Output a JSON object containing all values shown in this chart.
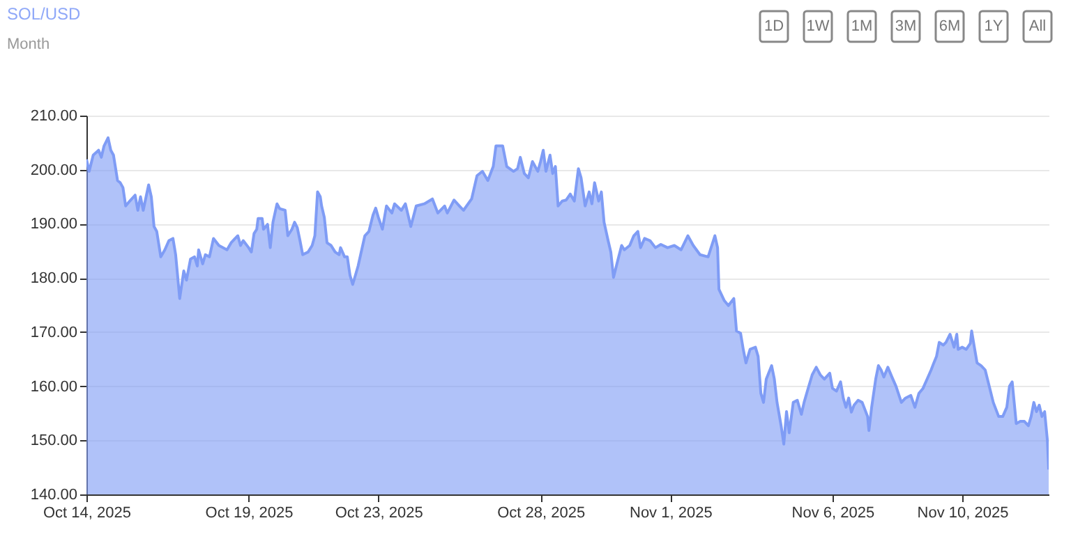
{
  "chart_data": {
    "type": "area",
    "title": "SOL/USD",
    "subtitle": "Month",
    "annotations": [
      "1D",
      "1W",
      "1M",
      "3M",
      "6M",
      "1Y",
      "All"
    ],
    "xlim": [
      "2025-10-14T00:00",
      "2025-11-12T16:00"
    ],
    "xticks": [
      {
        "value": "2025-10-14",
        "label": "Oct 14, 2025"
      },
      {
        "value": "2025-10-19",
        "label": "Oct 19, 2025"
      },
      {
        "value": "2025-10-23",
        "label": "Oct 23, 2025"
      },
      {
        "value": "2025-10-28",
        "label": "Oct 28, 2025"
      },
      {
        "value": "2025-11-01",
        "label": "Nov 1, 2025"
      },
      {
        "value": "2025-11-06",
        "label": "Nov 6, 2025"
      },
      {
        "value": "2025-11-10",
        "label": "Nov 10, 2025"
      }
    ],
    "ylim": [
      140,
      210
    ],
    "yticks": [
      {
        "value": 140,
        "label": "140.00"
      },
      {
        "value": 150,
        "label": "150.00"
      },
      {
        "value": 160,
        "label": "160.00"
      },
      {
        "value": 170,
        "label": "170.00"
      },
      {
        "value": 180,
        "label": "180.00"
      },
      {
        "value": 190,
        "label": "190.00"
      },
      {
        "value": 200,
        "label": "200.00"
      },
      {
        "value": 210,
        "label": "210.00"
      }
    ],
    "grid": "y",
    "series": [
      {
        "color": "#7f9cf5",
        "x": [
          "2025-10-14T00:00",
          "2025-10-14T02:00",
          "2025-10-14T05:00",
          "2025-10-14T09:00",
          "2025-10-14T11:00",
          "2025-10-14T13:00",
          "2025-10-14T16:00",
          "2025-10-14T18:00",
          "2025-10-14T20:00",
          "2025-10-14T23:00",
          "2025-10-15T01:00",
          "2025-10-15T03:00",
          "2025-10-15T05:00",
          "2025-10-15T08:00",
          "2025-10-15T12:00",
          "2025-10-15T14:00",
          "2025-10-15T16:00",
          "2025-10-15T18:00",
          "2025-10-15T22:00",
          "2025-10-16T00:00",
          "2025-10-16T02:00",
          "2025-10-16T04:00",
          "2025-10-16T07:00",
          "2025-10-16T10:00",
          "2025-10-16T13:00",
          "2025-10-16T16:00",
          "2025-10-16T18:00",
          "2025-10-16T21:00",
          "2025-10-17T00:00",
          "2025-10-17T02:00",
          "2025-10-17T05:00",
          "2025-10-17T08:00",
          "2025-10-17T10:00",
          "2025-10-17T11:00",
          "2025-10-17T14:00",
          "2025-10-17T16:00",
          "2025-10-17T19:00",
          "2025-10-17T22:00",
          "2025-10-18T02:00",
          "2025-10-18T08:00",
          "2025-10-18T11:00",
          "2025-10-18T14:00",
          "2025-10-18T16:00",
          "2025-10-18T18:00",
          "2025-10-18T20:00",
          "2025-10-19T00:00",
          "2025-10-19T02:00",
          "2025-10-19T04:00",
          "2025-10-19T06:00",
          "2025-10-19T07:00",
          "2025-10-19T10:00",
          "2025-10-19T11:00",
          "2025-10-19T14:00",
          "2025-10-19T16:00",
          "2025-10-19T18:00",
          "2025-10-19T21:00",
          "2025-10-19T23:00",
          "2025-10-20T03:00",
          "2025-10-20T05:00",
          "2025-10-20T08:00",
          "2025-10-20T10:00",
          "2025-10-20T12:00",
          "2025-10-20T14:00",
          "2025-10-20T16:00",
          "2025-10-20T20:00",
          "2025-10-20T23:00",
          "2025-10-21T01:00",
          "2025-10-21T03:00",
          "2025-10-21T05:00",
          "2025-10-21T06:00",
          "2025-10-21T08:00",
          "2025-10-21T10:00",
          "2025-10-21T13:00",
          "2025-10-21T16:00",
          "2025-10-21T19:00",
          "2025-10-21T20:00",
          "2025-10-21T23:00",
          "2025-10-22T01:00",
          "2025-10-22T03:00",
          "2025-10-22T05:00",
          "2025-10-22T09:00",
          "2025-10-22T14:00",
          "2025-10-22T17:00",
          "2025-10-22T20:00",
          "2025-10-22T22:00",
          "2025-10-23T00:00",
          "2025-10-23T03:00",
          "2025-10-23T06:00",
          "2025-10-23T10:00",
          "2025-10-23T12:00",
          "2025-10-23T17:00",
          "2025-10-23T20:00",
          "2025-10-24T00:00",
          "2025-10-24T04:00",
          "2025-10-24T10:00",
          "2025-10-24T16:00",
          "2025-10-24T20:00",
          "2025-10-25T01:00",
          "2025-10-25T03:00",
          "2025-10-25T08:00",
          "2025-10-25T12:00",
          "2025-10-25T15:00",
          "2025-10-25T21:00",
          "2025-10-26T01:00",
          "2025-10-26T05:00",
          "2025-10-26T09:00",
          "2025-10-26T13:00",
          "2025-10-26T15:00",
          "2025-10-26T20:00",
          "2025-10-26T23:00",
          "2025-10-27T04:00",
          "2025-10-27T07:00",
          "2025-10-27T09:00",
          "2025-10-27T12:00",
          "2025-10-27T15:00",
          "2025-10-27T18:00",
          "2025-10-27T22:00",
          "2025-10-28T00:00",
          "2025-10-28T02:00",
          "2025-10-28T04:00",
          "2025-10-28T07:00",
          "2025-10-28T09:00",
          "2025-10-28T11:00",
          "2025-10-28T13:00",
          "2025-10-28T16:00",
          "2025-10-28T19:00",
          "2025-10-28T22:00",
          "2025-10-29T01:00",
          "2025-10-29T04:00",
          "2025-10-29T06:00",
          "2025-10-29T09:00",
          "2025-10-29T12:00",
          "2025-10-29T14:00",
          "2025-10-29T16:00",
          "2025-10-29T19:00",
          "2025-10-29T21:00",
          "2025-10-29T23:00",
          "2025-10-30T02:00",
          "2025-10-30T04:00",
          "2025-10-30T06:00",
          "2025-10-30T09:00",
          "2025-10-30T12:00",
          "2025-10-30T14:00",
          "2025-10-30T18:00",
          "2025-10-30T21:00",
          "2025-10-31T00:00",
          "2025-10-31T02:00",
          "2025-10-31T05:00",
          "2025-10-31T09:00",
          "2025-10-31T13:00",
          "2025-10-31T17:00",
          "2025-10-31T22:00",
          "2025-11-01T03:00",
          "2025-11-01T08:00",
          "2025-11-01T13:00",
          "2025-11-01T17:00",
          "2025-11-01T22:00",
          "2025-11-02T04:00",
          "2025-11-02T09:00",
          "2025-11-02T11:00",
          "2025-11-02T12:00",
          "2025-11-02T16:00",
          "2025-11-02T19:00",
          "2025-11-02T23:00",
          "2025-11-03T01:00",
          "2025-11-03T04:00",
          "2025-11-03T06:00",
          "2025-11-03T08:00",
          "2025-11-03T11:00",
          "2025-11-03T15:00",
          "2025-11-03T17:00",
          "2025-11-03T19:00",
          "2025-11-03T21:00",
          "2025-11-03T23:00",
          "2025-11-04T03:00",
          "2025-11-04T05:00",
          "2025-11-04T07:00",
          "2025-11-04T10:00",
          "2025-11-04T12:00",
          "2025-11-04T14:00",
          "2025-11-04T16:00",
          "2025-11-04T19:00",
          "2025-11-04T22:00",
          "2025-11-05T01:00",
          "2025-11-05T03:00",
          "2025-11-05T06:00",
          "2025-11-05T09:00",
          "2025-11-05T12:00",
          "2025-11-05T15:00",
          "2025-11-05T18:00",
          "2025-11-05T22:00",
          "2025-11-06T00:00",
          "2025-11-06T03:00",
          "2025-11-06T06:00",
          "2025-11-06T08:00",
          "2025-11-06T10:00",
          "2025-11-06T12:00",
          "2025-11-06T14:00",
          "2025-11-06T16:00",
          "2025-11-06T19:00",
          "2025-11-06T22:00",
          "2025-11-07T02:00",
          "2025-11-07T03:00",
          "2025-11-07T05:00",
          "2025-11-07T08:00",
          "2025-11-07T10:00",
          "2025-11-07T12:00",
          "2025-11-07T14:00",
          "2025-11-07T17:00",
          "2025-11-07T20:00",
          "2025-11-07T23:00",
          "2025-11-08T03:00",
          "2025-11-08T06:00",
          "2025-11-08T10:00",
          "2025-11-08T13:00",
          "2025-11-08T16:00",
          "2025-11-08T19:00",
          "2025-11-08T22:00",
          "2025-11-09T01:00",
          "2025-11-09T03:00",
          "2025-11-09T05:00",
          "2025-11-09T07:00",
          "2025-11-09T10:00",
          "2025-11-09T12:00",
          "2025-11-09T15:00",
          "2025-11-09T18:00",
          "2025-11-09T20:00",
          "2025-11-09T21:00",
          "2025-11-10T00:00",
          "2025-11-10T03:00",
          "2025-11-10T06:00",
          "2025-11-10T07:00",
          "2025-11-10T09:00",
          "2025-11-10T11:00",
          "2025-11-10T14:00",
          "2025-11-10T17:00",
          "2025-11-10T20:00",
          "2025-11-10T23:00",
          "2025-11-11T03:00",
          "2025-11-11T06:00",
          "2025-11-11T09:00",
          "2025-11-11T11:00",
          "2025-11-11T13:00",
          "2025-11-11T16:00",
          "2025-11-11T19:00",
          "2025-11-11T22:00",
          "2025-11-12T01:00",
          "2025-11-12T03:00",
          "2025-11-12T05:00",
          "2025-11-12T07:00",
          "2025-11-12T09:00",
          "2025-11-12T11:00",
          "2025-11-12T13:00",
          "2025-11-12T15:00",
          "2025-11-12T16:00"
        ],
        "values": [
          201.9,
          199.7,
          202.7,
          203.6,
          202.3,
          204.4,
          205.9,
          203.6,
          202.7,
          198.0,
          197.6,
          196.7,
          193.3,
          194.2,
          195.3,
          192.5,
          195.0,
          192.5,
          197.2,
          195.0,
          189.5,
          188.6,
          183.9,
          185.2,
          186.9,
          187.3,
          184.3,
          176.2,
          181.3,
          179.6,
          183.5,
          183.9,
          182.2,
          185.2,
          182.6,
          184.3,
          183.9,
          187.3,
          186.0,
          185.2,
          186.5,
          187.3,
          187.8,
          186.0,
          186.9,
          185.6,
          184.8,
          188.2,
          189.0,
          191.0,
          191.0,
          189.0,
          189.9,
          185.6,
          190.3,
          193.7,
          192.8,
          192.5,
          187.8,
          189.0,
          190.3,
          189.3,
          186.9,
          184.3,
          184.8,
          186.0,
          187.8,
          195.9,
          195.0,
          193.3,
          191.2,
          186.5,
          186.0,
          184.8,
          184.3,
          185.6,
          183.9,
          183.9,
          180.5,
          178.8,
          182.2,
          187.8,
          188.6,
          191.6,
          192.9,
          191.2,
          189.0,
          193.3,
          192.0,
          193.7,
          192.5,
          193.7,
          189.5,
          193.3,
          193.7,
          194.6,
          192.0,
          193.3,
          192.0,
          194.4,
          193.3,
          192.5,
          194.6,
          198.9,
          199.7,
          198.0,
          200.6,
          204.4,
          204.4,
          200.6,
          199.7,
          200.2,
          202.3,
          199.3,
          198.5,
          201.5,
          199.7,
          201.5,
          203.6,
          199.7,
          202.7,
          199.3,
          200.6,
          193.3,
          194.2,
          194.4,
          195.5,
          194.2,
          200.2,
          198.5,
          193.3,
          195.9,
          193.7,
          197.6,
          194.2,
          195.9,
          190.3,
          186.9,
          184.8,
          180.1,
          183.1,
          186.0,
          185.2,
          186.0,
          187.8,
          188.6,
          185.6,
          187.3,
          186.9,
          185.6,
          186.2,
          185.6,
          186.0,
          185.2,
          187.8,
          186.0,
          184.3,
          183.9,
          187.8,
          185.6,
          177.9,
          175.8,
          174.9,
          176.2,
          170.2,
          169.8,
          166.8,
          164.3,
          166.8,
          167.2,
          165.5,
          158.7,
          157.0,
          161.3,
          163.8,
          161.3,
          157.0,
          152.7,
          149.3,
          155.3,
          151.4,
          157.0,
          157.4,
          154.8,
          157.0,
          159.6,
          162.1,
          163.5,
          162.1,
          161.3,
          162.4,
          159.6,
          159.1,
          160.8,
          157.8,
          156.1,
          157.8,
          155.2,
          156.5,
          157.4,
          157.0,
          154.4,
          151.8,
          156.1,
          161.3,
          163.8,
          163.0,
          161.7,
          163.5,
          161.7,
          160.0,
          157.0,
          157.8,
          158.3,
          156.1,
          158.7,
          159.6,
          161.3,
          163.0,
          164.3,
          165.5,
          168.1,
          167.6,
          168.1,
          169.6,
          167.2,
          169.6,
          166.8,
          167.2,
          166.8,
          167.9,
          170.2,
          167.2,
          164.3,
          163.8,
          163.0,
          160.0,
          157.0,
          154.4,
          154.4,
          156.1,
          160.0,
          160.8,
          153.1,
          153.5,
          153.5,
          152.7,
          154.4,
          157.0,
          155.3,
          156.5,
          154.4,
          155.3,
          150.1,
          144.6
        ]
      }
    ]
  }
}
